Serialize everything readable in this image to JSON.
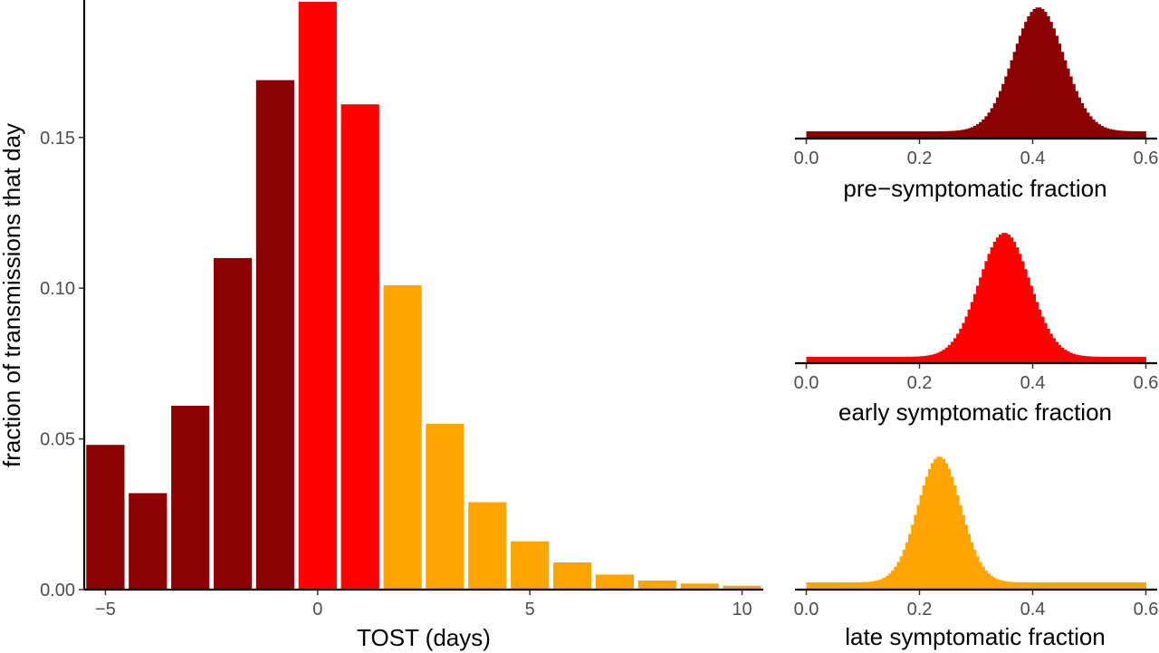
{
  "colors": {
    "pre": "#8b0000",
    "early": "#ff0000",
    "late": "#ffa500"
  },
  "chart_data": [
    {
      "type": "bar",
      "xlabel": "TOST (days)",
      "ylabel": "fraction of transmissions that day",
      "xlim": [
        -5.5,
        10.5
      ],
      "ylim": [
        0,
        0.195
      ],
      "x_ticks": [
        -5,
        0,
        5,
        10
      ],
      "x_tick_labels": [
        "−5",
        "0",
        "5",
        "10"
      ],
      "y_ticks": [
        0.0,
        0.05,
        0.1,
        0.15
      ],
      "y_tick_labels": [
        "0.00",
        "0.05",
        "0.10",
        "0.15"
      ],
      "grid": false,
      "bars": [
        {
          "x": -5,
          "value": 0.048,
          "group": "pre"
        },
        {
          "x": -4,
          "value": 0.032,
          "group": "pre"
        },
        {
          "x": -3,
          "value": 0.061,
          "group": "pre"
        },
        {
          "x": -2,
          "value": 0.11,
          "group": "pre"
        },
        {
          "x": -1,
          "value": 0.169,
          "group": "pre"
        },
        {
          "x": 0,
          "value": 0.195,
          "group": "early"
        },
        {
          "x": 1,
          "value": 0.161,
          "group": "early"
        },
        {
          "x": 2,
          "value": 0.101,
          "group": "late"
        },
        {
          "x": 3,
          "value": 0.055,
          "group": "late"
        },
        {
          "x": 4,
          "value": 0.029,
          "group": "late"
        },
        {
          "x": 5,
          "value": 0.016,
          "group": "late"
        },
        {
          "x": 6,
          "value": 0.009,
          "group": "late"
        },
        {
          "x": 7,
          "value": 0.005,
          "group": "late"
        },
        {
          "x": 8,
          "value": 0.003,
          "group": "late"
        },
        {
          "x": 9,
          "value": 0.002,
          "group": "late"
        },
        {
          "x": 10,
          "value": 0.0013,
          "group": "late"
        }
      ]
    },
    {
      "type": "histogram",
      "xlabel": "pre−symptomatic fraction",
      "xlim": [
        -0.02,
        0.62
      ],
      "x_ticks": [
        0.0,
        0.2,
        0.4,
        0.6
      ],
      "x_tick_labels": [
        "0.0",
        "0.2",
        "0.4",
        "0.6"
      ],
      "distribution": {
        "mean": 0.41,
        "sd": 0.045,
        "range": [
          0.0,
          0.6
        ],
        "bins": 120
      },
      "color_key": "pre"
    },
    {
      "type": "histogram",
      "xlabel": "early symptomatic fraction",
      "xlim": [
        -0.02,
        0.62
      ],
      "x_ticks": [
        0.0,
        0.2,
        0.4,
        0.6
      ],
      "x_tick_labels": [
        "0.0",
        "0.2",
        "0.4",
        "0.6"
      ],
      "distribution": {
        "mean": 0.35,
        "sd": 0.045,
        "range": [
          0.0,
          0.6
        ],
        "bins": 120
      },
      "color_key": "early"
    },
    {
      "type": "histogram",
      "xlabel": "late symptomatic fraction",
      "xlim": [
        -0.02,
        0.62
      ],
      "x_ticks": [
        0.0,
        0.2,
        0.4,
        0.6
      ],
      "x_tick_labels": [
        "0.0",
        "0.2",
        "0.4",
        "0.6"
      ],
      "distribution": {
        "mean": 0.235,
        "sd": 0.038,
        "range": [
          0.0,
          0.6
        ],
        "bins": 120
      },
      "color_key": "late"
    }
  ]
}
